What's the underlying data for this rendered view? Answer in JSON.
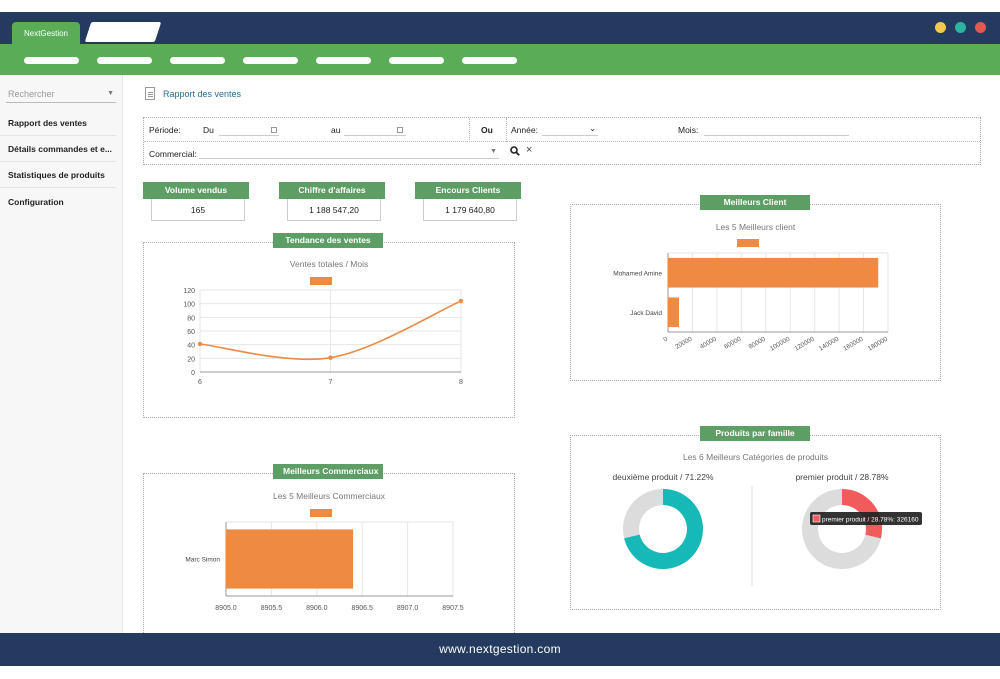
{
  "browser": {
    "active_tab": "NextGestion",
    "window_dot_colors": [
      "#f2c94c",
      "#2bb5a0",
      "#e05a4f"
    ],
    "theme": {
      "navy": "#243a5e",
      "green": "#5aac56",
      "badge": "#5c9e63",
      "orange": "#ee8a42"
    }
  },
  "sidebar": {
    "search_placeholder": "Rechercher",
    "items": [
      {
        "label": "Rapport des ventes"
      },
      {
        "label": "Détails commandes et e..."
      },
      {
        "label": "Statistiques de produits"
      },
      {
        "label": "Configuration"
      }
    ]
  },
  "header": {
    "title": "Rapport des ventes"
  },
  "filters": {
    "periode_label": "Période:",
    "du_label": "Du",
    "au_label": "au",
    "ou_label": "Ou",
    "annee_label": "Année:",
    "mois_label": "Mois:",
    "commercial_label": "Commercial:"
  },
  "kpis": [
    {
      "label": "Volume vendus",
      "value": "165"
    },
    {
      "label": "Chiffre d'affaires",
      "value": "1 188 547,20"
    },
    {
      "label": "Encours Clients",
      "value": "1 179 640,80"
    }
  ],
  "panels": {
    "tendance": {
      "badge": "Tendance des ventes"
    },
    "meilleurs_client": {
      "badge": "Meilleurs Client"
    },
    "meilleurs_commerciaux": {
      "badge": "Meilleurs Commerciaux"
    },
    "produits_famille": {
      "badge": "Produits par famille"
    }
  },
  "chart_data": [
    {
      "type": "line",
      "title": "Ventes totales / Mois",
      "x": [
        6,
        7,
        8
      ],
      "y": [
        41,
        21,
        104
      ],
      "ylim": [
        0,
        120
      ],
      "yticks": [
        0,
        20,
        40,
        60,
        80,
        100,
        120
      ],
      "xticks": [
        "6",
        "7",
        "8"
      ]
    },
    {
      "type": "bar",
      "orientation": "horizontal",
      "title": "Les 5 Meilleurs client",
      "categories": [
        "Mohamed Amine",
        "Jack David"
      ],
      "values": [
        172000,
        9000
      ],
      "xlim": [
        0,
        180000
      ],
      "xticks": [
        "0",
        "20000",
        "40000",
        "60000",
        "80000",
        "100000",
        "120000",
        "140000",
        "160000",
        "180000"
      ]
    },
    {
      "type": "bar",
      "orientation": "horizontal",
      "title": "Les 5 Meilleurs Commerciaux",
      "categories": [
        "Marc Simon"
      ],
      "values": [
        8906.4
      ],
      "xlim": [
        8905.0,
        8907.5
      ],
      "xticks": [
        "8905.0",
        "8905.5",
        "8906.0",
        "8906.5",
        "8907.0",
        "8907.5"
      ]
    },
    {
      "type": "pie",
      "title": "Les 6 Meilleurs Catégories de produits",
      "charts": [
        {
          "label": "deuxième produit / 71.22%",
          "value": 71.22,
          "color": "#16b8b8"
        },
        {
          "label": "premier produit / 28.78%",
          "value": 28.78,
          "color": "#f15b5b",
          "tooltip": "premier produit / 28.78%: 326160"
        }
      ]
    }
  ],
  "footer": {
    "url": "www.nextgestion.com"
  }
}
